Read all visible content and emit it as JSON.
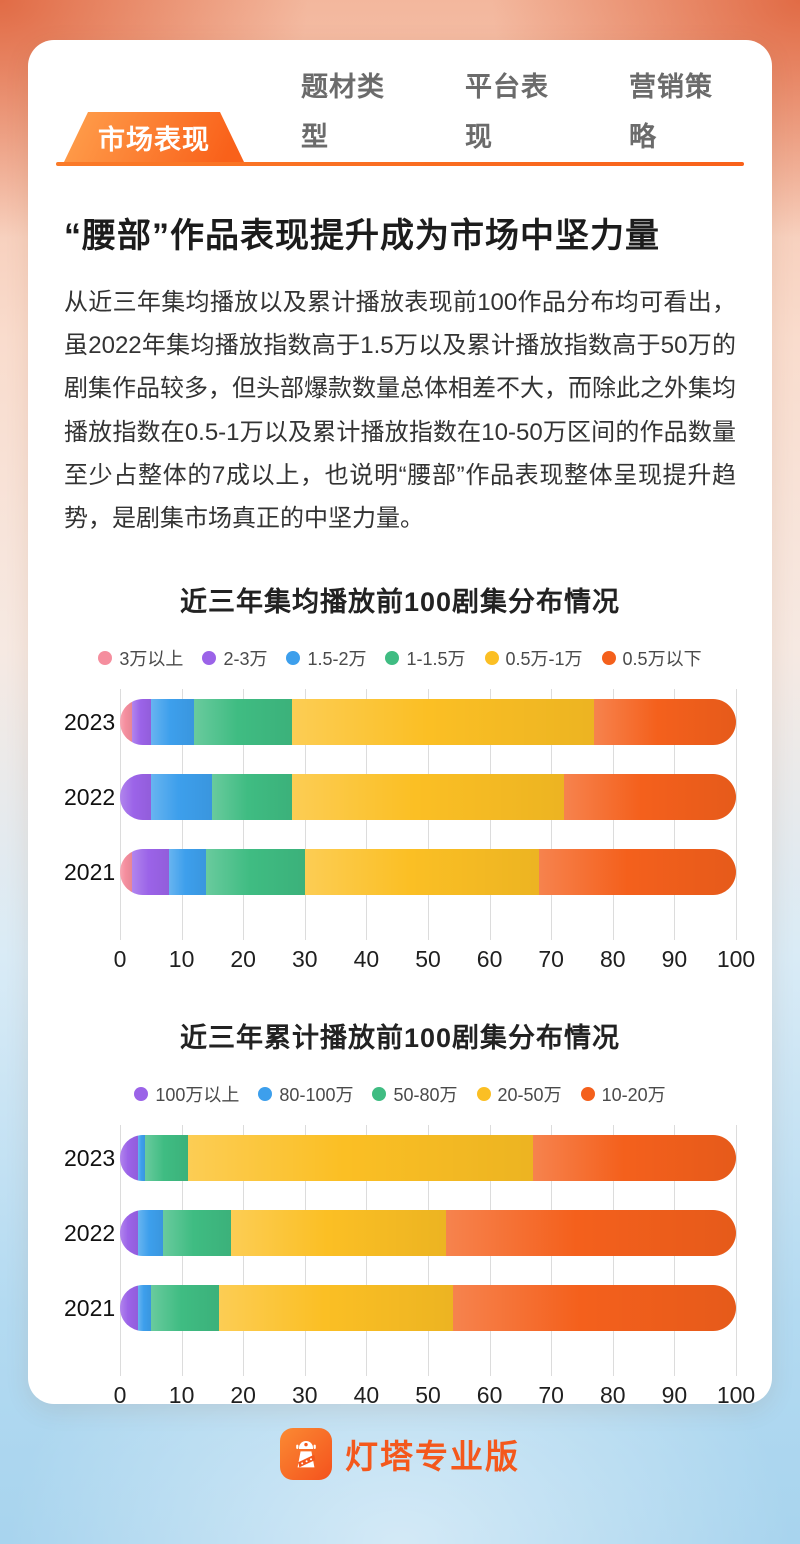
{
  "tabs": [
    {
      "label": "市场表现",
      "active": true
    },
    {
      "label": "题材类型",
      "active": false
    },
    {
      "label": "平台表现",
      "active": false
    },
    {
      "label": "营销策略",
      "active": false
    }
  ],
  "headline": "“腰部”作品表现提升成为市场中坚力量",
  "paragraph": "从近三年集均播放以及累计播放表现前100作品分布均可看出，虽2022年集均播放指数高于1.5万以及累计播放指数高于50万的剧集作品较多，但头部爆款数量总体相差不大，而除此之外集均播放指数在0.5-1万以及累计播放指数在10-50万区间的作品数量至少占整体的7成以上，也说明“腰部”作品表现整体呈现提升趋势，是剧集市场真正的中坚力量。",
  "theme": {
    "accent_orange": "#F9611A",
    "brand_orange": "#F4581C",
    "gridline_color": "#DCDCDC"
  },
  "chart_data": [
    {
      "type": "bar",
      "orientation": "horizontal",
      "stacked": true,
      "title": "近三年集均播放前100剧集分布情况",
      "categories": [
        "2023",
        "2022",
        "2021"
      ],
      "series": [
        {
          "name": "3万以上",
          "color": "#F58E9E",
          "values": [
            2,
            0,
            2
          ]
        },
        {
          "name": "2-3万",
          "color": "#9B63E8",
          "values": [
            3,
            5,
            6
          ]
        },
        {
          "name": "1.5-2万",
          "color": "#3D9FEC",
          "values": [
            7,
            10,
            6
          ]
        },
        {
          "name": "1-1.5万",
          "color": "#3FBC82",
          "values": [
            16,
            13,
            16
          ]
        },
        {
          "name": "0.5万-1万",
          "color": "#FBBF24",
          "values": [
            49,
            44,
            38
          ]
        },
        {
          "name": "0.5万以下",
          "color": "#F4601C",
          "values": [
            23,
            28,
            32
          ]
        }
      ],
      "xticks": [
        0,
        10,
        20,
        30,
        40,
        50,
        60,
        70,
        80,
        90,
        100
      ],
      "xlim": [
        0,
        100
      ],
      "grid": true,
      "legend_position": "top"
    },
    {
      "type": "bar",
      "orientation": "horizontal",
      "stacked": true,
      "title": "近三年累计播放前100剧集分布情况",
      "categories": [
        "2023",
        "2022",
        "2021"
      ],
      "series": [
        {
          "name": "100万以上",
          "color": "#9B63E8",
          "values": [
            3,
            3,
            3
          ]
        },
        {
          "name": "80-100万",
          "color": "#3D9FEC",
          "values": [
            1,
            4,
            2
          ]
        },
        {
          "name": "50-80万",
          "color": "#3FBC82",
          "values": [
            7,
            11,
            11
          ]
        },
        {
          "name": "20-50万",
          "color": "#FBBF24",
          "values": [
            56,
            35,
            38
          ]
        },
        {
          "name": "10-20万",
          "color": "#F4601C",
          "values": [
            33,
            47,
            46
          ]
        }
      ],
      "xticks": [
        0,
        10,
        20,
        30,
        40,
        50,
        60,
        70,
        80,
        90,
        100
      ],
      "xlim": [
        0,
        100
      ],
      "grid": true,
      "legend_position": "top"
    }
  ],
  "footer": {
    "brand": "灯塔专业版"
  }
}
